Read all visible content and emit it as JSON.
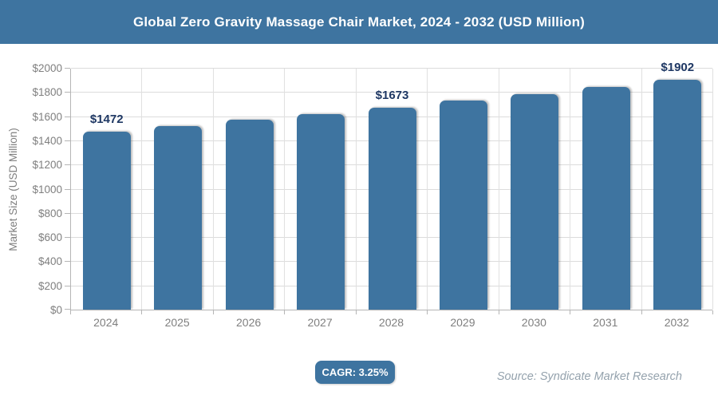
{
  "header": {
    "title": "Global Zero Gravity Massage Chair Market, 2024 - 2032 (USD Million)",
    "bar_color": "#3e74a0",
    "text_color": "#ffffff"
  },
  "chart_data": {
    "type": "bar",
    "title": "Global Zero Gravity Massage Chair Market, 2024 - 2032 (USD Million)",
    "categories": [
      "2024",
      "2025",
      "2026",
      "2027",
      "2028",
      "2029",
      "2030",
      "2031",
      "2032"
    ],
    "values": [
      1472,
      1520,
      1569,
      1620,
      1673,
      1727,
      1783,
      1841,
      1902
    ],
    "data_labels": [
      "$1472",
      null,
      null,
      null,
      "$1673",
      null,
      null,
      null,
      "$1902"
    ],
    "xlabel": "",
    "ylabel": "Market Size (USD Million)",
    "ylim": [
      0,
      2000
    ],
    "ytick_step": 200,
    "ytick_labels": [
      "$0",
      "$200",
      "$400",
      "$600",
      "$800",
      "$1000",
      "$1200",
      "$1400",
      "$1600",
      "$1800",
      "$2000"
    ],
    "grid": true,
    "legend": false,
    "bar_color": "#3e74a0",
    "data_label_color": "#1f3864",
    "axis_text_color": "#7f7f7f"
  },
  "footer": {
    "cagr_label": "CAGR: 3.25%",
    "source_label": "Source: Syndicate Market Research",
    "badge_color": "#3e74a0"
  }
}
